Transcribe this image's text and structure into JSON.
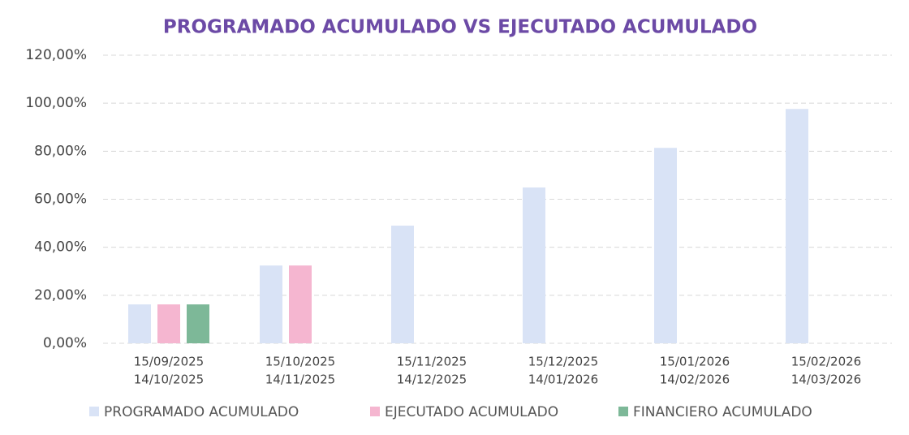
{
  "chart_data": {
    "type": "bar",
    "title": "PROGRAMADO ACUMULADO VS EJECUTADO ACUMULADO",
    "categories": [
      [
        "15/09/2025",
        "14/10/2025"
      ],
      [
        "15/10/2025",
        "14/11/2025"
      ],
      [
        "15/11/2025",
        "14/12/2025"
      ],
      [
        "15/12/2025",
        "14/01/2026"
      ],
      [
        "15/01/2026",
        "14/02/2026"
      ],
      [
        "15/02/2026",
        "14/03/2026"
      ]
    ],
    "series": [
      {
        "name": "PROGRAMADO ACUMULADO",
        "color": "#d9e3f6",
        "values": [
          16.2,
          32.4,
          49,
          64.9,
          81.4,
          97.6
        ]
      },
      {
        "name": "EJECUTADO ACUMULADO",
        "color": "#f5b6d0",
        "values": [
          16.2,
          32.4,
          null,
          null,
          null,
          null
        ]
      },
      {
        "name": "FINANCIERO ACUMULADO",
        "color": "#7db898",
        "values": [
          16.2,
          null,
          null,
          null,
          null,
          null
        ]
      }
    ],
    "ylim": [
      0,
      120
    ],
    "yticks": [
      {
        "value": 0,
        "label": "0,00%"
      },
      {
        "value": 20,
        "label": "20,00%"
      },
      {
        "value": 40,
        "label": "40,00%"
      },
      {
        "value": 60,
        "label": "60,00%"
      },
      {
        "value": 80,
        "label": "80,00%"
      },
      {
        "value": 100,
        "label": "100,00%"
      },
      {
        "value": 120,
        "label": "120,00%"
      }
    ],
    "grid": true,
    "legend": "bottom"
  }
}
